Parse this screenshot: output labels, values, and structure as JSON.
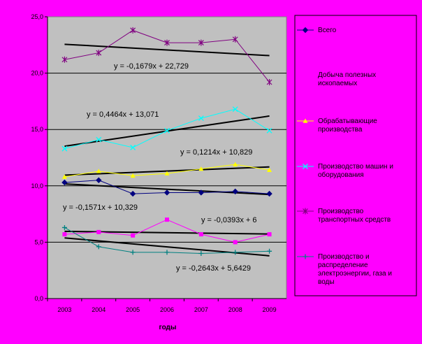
{
  "chart_data": {
    "type": "line",
    "xlabel": "годы",
    "ylabel": "",
    "ylim": [
      0,
      25
    ],
    "yticks": [
      "0,0",
      "5,0",
      "10,0",
      "15,0",
      "20,0",
      "25,0"
    ],
    "categories": [
      "2003",
      "2004",
      "2005",
      "2006",
      "2007",
      "2008",
      "2009"
    ],
    "grid": "horizontal",
    "legend_position": "right",
    "colors": {
      "background": "#ff00ff",
      "plot_area": "#c0c0c0",
      "trendline": "#000000"
    },
    "series": [
      {
        "name": "Всего",
        "values": [
          10.3,
          10.5,
          9.3,
          9.4,
          9.4,
          9.5,
          9.3
        ],
        "color": "#000080",
        "marker": "diamond",
        "equation": "y = -0,1571x + 10,329",
        "trend": [
          -0.1571,
          10.329
        ]
      },
      {
        "name": "Добыча полезных ископаемых",
        "values": [
          5.7,
          5.9,
          5.6,
          7.0,
          5.7,
          5.0,
          5.7
        ],
        "color": "#ff00ff",
        "marker": "square",
        "equation": "y = -0,0393x + 6",
        "trend": [
          -0.0393,
          6
        ]
      },
      {
        "name": "Обрабатывающие производства",
        "values": [
          10.8,
          11.3,
          10.9,
          11.1,
          11.5,
          11.9,
          11.4
        ],
        "color": "#ffff00",
        "marker": "triangle",
        "equation": "y = 0,1214x + 10,829",
        "trend": [
          0.1214,
          10.829
        ]
      },
      {
        "name": "Производство машин и оборудования",
        "values": [
          13.3,
          14.1,
          13.4,
          14.9,
          16.0,
          16.8,
          14.9
        ],
        "color": "#00ffff",
        "marker": "x",
        "equation": "y = 0,4464x + 13,071",
        "trend": [
          0.4464,
          13.071
        ]
      },
      {
        "name": "Производство транспортных средств",
        "values": [
          21.2,
          21.8,
          23.8,
          22.7,
          22.7,
          23.0,
          19.2
        ],
        "color": "#800080",
        "marker": "star",
        "equation": "y = -0,1679x + 22,729",
        "trend": [
          -0.1679,
          22.729
        ]
      },
      {
        "name": "Производство и распределение электроэнергии, газа и воды",
        "values": [
          6.3,
          4.6,
          4.1,
          4.1,
          4.0,
          4.1,
          4.2
        ],
        "color": "#008080",
        "marker": "plus",
        "equation": "y = -0,2643x + 5,6429",
        "trend": [
          -0.2643,
          5.6429
        ]
      }
    ]
  }
}
